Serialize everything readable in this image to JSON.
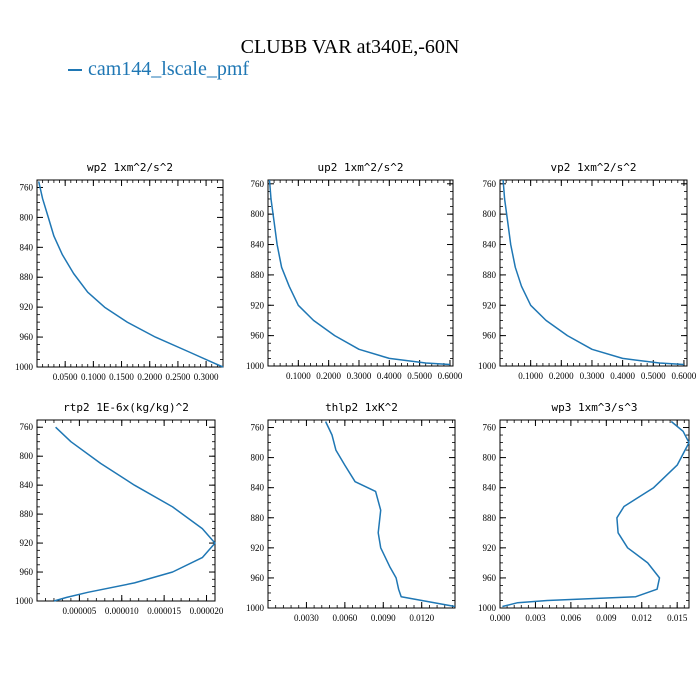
{
  "figure": {
    "title": "CLUBB VAR at340E,-60N",
    "legend_label": "cam144_lscale_pmf",
    "line_color": "#1f77b4"
  },
  "chart_data": [
    {
      "type": "line",
      "title": "wp2  1xm^2/s^2",
      "xlim": [
        0.0,
        0.33
      ],
      "ylim": [
        1000,
        750
      ],
      "xticks": [
        0.05,
        0.1,
        0.15,
        0.2,
        0.25,
        0.3
      ],
      "xtick_labels": [
        "0.0500",
        "0.1000",
        "0.1500",
        "0.2000",
        "0.2500",
        "0.3000"
      ],
      "yticks": [
        760,
        800,
        840,
        880,
        920,
        960,
        1000
      ],
      "series": [
        {
          "x": [
            0.003,
            0.01,
            0.02,
            0.03,
            0.045,
            0.065,
            0.09,
            0.12,
            0.16,
            0.21,
            0.27,
            0.315,
            0.33
          ],
          "y": [
            752,
            775,
            800,
            825,
            850,
            875,
            900,
            920,
            940,
            960,
            980,
            995,
            1000
          ]
        }
      ]
    },
    {
      "type": "line",
      "title": "up2  1xm^2/s^2",
      "xlim": [
        0.0,
        0.61
      ],
      "ylim": [
        1000,
        755
      ],
      "xticks": [
        0.1,
        0.2,
        0.3,
        0.4,
        0.5,
        0.6
      ],
      "xtick_labels": [
        "0.1000",
        "0.2000",
        "0.3000",
        "0.4000",
        "0.5000",
        "0.6000"
      ],
      "yticks": [
        760,
        800,
        840,
        880,
        920,
        960,
        1000
      ],
      "series": [
        {
          "x": [
            0.005,
            0.01,
            0.02,
            0.03,
            0.045,
            0.07,
            0.1,
            0.15,
            0.22,
            0.3,
            0.4,
            0.52,
            0.6
          ],
          "y": [
            755,
            780,
            810,
            840,
            870,
            895,
            920,
            940,
            960,
            978,
            990,
            996,
            998
          ]
        }
      ]
    },
    {
      "type": "line",
      "title": "vp2  1xm^2/s^2",
      "xlim": [
        0.0,
        0.61
      ],
      "ylim": [
        1000,
        755
      ],
      "xticks": [
        0.1,
        0.2,
        0.3,
        0.4,
        0.5,
        0.6
      ],
      "xtick_labels": [
        "0.1000",
        "0.2000",
        "0.3000",
        "0.4000",
        "0.5000",
        "0.6000"
      ],
      "yticks": [
        760,
        800,
        840,
        880,
        920,
        960,
        1000
      ],
      "series": [
        {
          "x": [
            0.01,
            0.015,
            0.025,
            0.035,
            0.05,
            0.07,
            0.1,
            0.15,
            0.22,
            0.3,
            0.4,
            0.52,
            0.6
          ],
          "y": [
            755,
            780,
            810,
            840,
            870,
            895,
            920,
            940,
            960,
            978,
            990,
            996,
            998
          ]
        }
      ]
    },
    {
      "type": "line",
      "title": "rtp2  1E-6x(kg/kg)^2",
      "xlim": [
        0.0,
        2.1e-05
      ],
      "ylim": [
        1000,
        750
      ],
      "xticks": [
        5e-06,
        1e-05,
        1.5e-05,
        2e-05
      ],
      "xtick_labels": [
        "0.000005",
        "0.000010",
        "0.000015",
        "0.000020"
      ],
      "yticks": [
        760,
        800,
        840,
        880,
        920,
        960,
        1000
      ],
      "series": [
        {
          "x": [
            2.2e-06,
            4e-06,
            7.5e-06,
            1.15e-05,
            1.6e-05,
            1.95e-05,
            2.1e-05,
            1.95e-05,
            1.6e-05,
            1.15e-05,
            6e-06,
            3.5e-06,
            2e-06
          ],
          "y": [
            760,
            780,
            810,
            840,
            870,
            900,
            920,
            940,
            960,
            975,
            988,
            995,
            1000
          ]
        }
      ]
    },
    {
      "type": "line",
      "title": "thlp2  1xK^2",
      "xlim": [
        0.0,
        0.0146
      ],
      "ylim": [
        1000,
        750
      ],
      "xticks": [
        0.003,
        0.006,
        0.009,
        0.012
      ],
      "xtick_labels": [
        "0.0030",
        "0.0060",
        "0.0090",
        "0.0120"
      ],
      "yticks": [
        760,
        800,
        840,
        880,
        920,
        960,
        1000
      ],
      "series": [
        {
          "x": [
            0.0045,
            0.005,
            0.0053,
            0.006,
            0.0068,
            0.0084,
            0.0088,
            0.0086,
            0.0088,
            0.0095,
            0.01,
            0.0102,
            0.0104,
            0.0146
          ],
          "y": [
            752,
            770,
            790,
            810,
            832,
            845,
            870,
            900,
            920,
            945,
            960,
            975,
            985,
            998
          ]
        }
      ]
    },
    {
      "type": "line",
      "title": "wp3  1xm^3/s^3",
      "xlim": [
        0.0,
        0.016
      ],
      "ylim": [
        1000,
        750
      ],
      "xticks": [
        0.0,
        0.003,
        0.006,
        0.009,
        0.012,
        0.015
      ],
      "xtick_labels": [
        "0.000",
        "0.003",
        "0.006",
        "0.009",
        "0.012",
        "0.015"
      ],
      "yticks": [
        760,
        800,
        840,
        880,
        920,
        960,
        1000
      ],
      "series": [
        {
          "x": [
            0.0145,
            0.0155,
            0.016,
            0.015,
            0.013,
            0.0105,
            0.0099,
            0.01,
            0.0108,
            0.0125,
            0.0135,
            0.0133,
            0.0115,
            0.004,
            0.0015,
            0.0002
          ],
          "y": [
            752,
            765,
            780,
            810,
            840,
            865,
            880,
            900,
            920,
            940,
            960,
            975,
            985,
            990,
            993,
            998
          ]
        }
      ]
    }
  ]
}
